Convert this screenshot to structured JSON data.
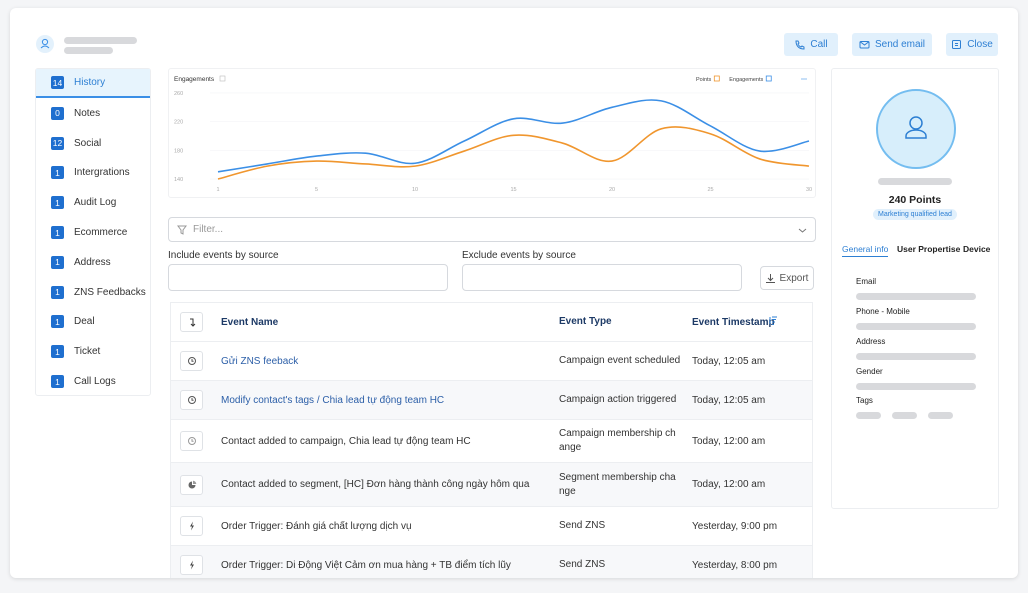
{
  "header": {
    "buttons": [
      "Call",
      "Send email",
      "Close"
    ]
  },
  "sidebar": {
    "items": [
      {
        "count": 14,
        "label": "History"
      },
      {
        "count": 0,
        "label": "Notes"
      },
      {
        "count": 12,
        "label": "Social"
      },
      {
        "count": 1,
        "label": "Intergrations"
      },
      {
        "count": 1,
        "label": "Audit Log"
      },
      {
        "count": 1,
        "label": "Ecommerce"
      },
      {
        "count": 1,
        "label": "Address"
      },
      {
        "count": 1,
        "label": "ZNS Feedbacks"
      },
      {
        "count": 1,
        "label": "Deal"
      },
      {
        "count": 1,
        "label": "Ticket"
      },
      {
        "count": 1,
        "label": "Call Logs"
      }
    ]
  },
  "chart_data": {
    "type": "line",
    "title": "Engagements",
    "categories": [
      "1",
      null,
      "5",
      null,
      "10",
      null,
      "15",
      null,
      "20",
      null,
      "25",
      null,
      "30"
    ],
    "series": [
      {
        "name": "Points",
        "color": "#f0962e",
        "values": [
          140,
          158,
          165,
          161,
          158,
          179,
          201,
          190,
          165,
          210,
          203,
          168,
          158
        ]
      },
      {
        "name": "Engagements",
        "color": "#3b8fe6",
        "values": [
          150,
          161,
          172,
          176,
          162,
          193,
          224,
          218,
          240,
          249,
          214,
          179,
          193
        ]
      }
    ],
    "ylim": [
      135,
      265
    ],
    "yticks": [
      140,
      180,
      220,
      260
    ],
    "legend": "top-right"
  },
  "filters": {
    "placeholder": "Filter...",
    "include_label": "Include events by source",
    "exclude_label": "Exclude events by source",
    "export": "Export"
  },
  "table": {
    "columns": [
      "Event Name",
      "Event Type",
      "Event Timestamp"
    ],
    "rows": [
      [
        "Gửi ZNS feeback",
        "Campaign event scheduled",
        "Today, 12:05 am"
      ],
      [
        "Modify contact's tags / Chia lead tự động team HC",
        "Campaign action triggered",
        "Today, 12:05 am"
      ],
      [
        "Contact added to campaign, Chia lead tự động team HC",
        "Campaign membership change",
        "Today, 12:00 am"
      ],
      [
        "Contact added to segment, [HC] Đơn hàng thành công ngày hôm qua",
        "Segment membership change",
        "Today, 12:00 am"
      ],
      [
        "Order Trigger: Đánh giá chất lượng dịch vụ",
        "Send ZNS",
        "Yesterday, 9:00 pm"
      ],
      [
        "Order Trigger: Di Động Việt Cảm ơn mua hàng + TB điểm tích lũy",
        "Send ZNS",
        "Yesterday, 8:00 pm"
      ]
    ]
  },
  "profile": {
    "points_label": "240 Points",
    "status": "Marketing qualified lead",
    "tabs": [
      "General info",
      "User Propertise",
      "Device"
    ],
    "fields": [
      "Email",
      "Phone - Mobile",
      "Address",
      "Gender",
      "Tags"
    ]
  }
}
